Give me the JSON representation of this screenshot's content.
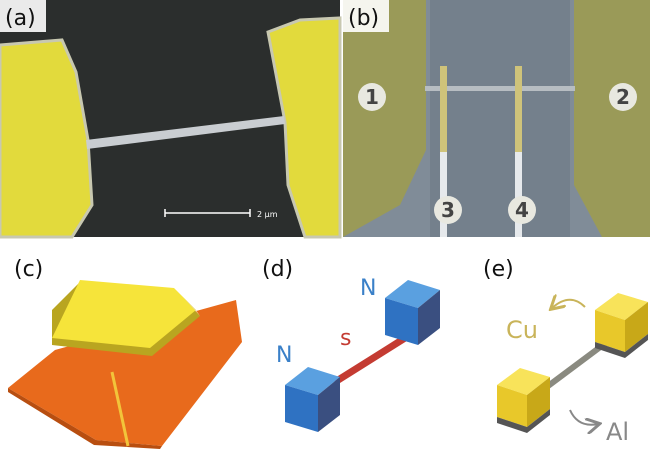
{
  "panels": [
    {
      "label": "(a)",
      "scale_bar": "2 μm"
    },
    {
      "label": "(b)",
      "contacts": [
        "1",
        "2",
        "3",
        "4"
      ]
    },
    {
      "label": "(c)"
    },
    {
      "label": "(d)",
      "leads": [
        "N",
        "N"
      ],
      "wire": "s"
    },
    {
      "label": "(e)",
      "lead_material": "Cu",
      "wire_material": "Al"
    }
  ]
}
